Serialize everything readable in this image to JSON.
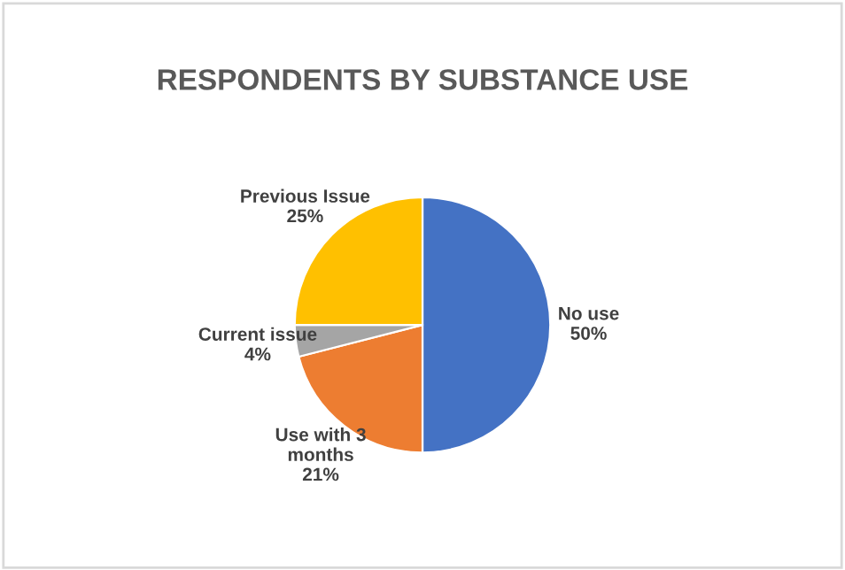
{
  "chart_data": {
    "type": "pie",
    "title": "RESPONDENTS BY SUBSTANCE USE",
    "categories": [
      "No use",
      "Use with 3\nmonths",
      "Current issue",
      "Previous Issue"
    ],
    "values": [
      50,
      21,
      4,
      25
    ],
    "value_labels": [
      "50%",
      "21%",
      "4%",
      "25%"
    ],
    "colors": [
      "#4472c4",
      "#ed7d31",
      "#a5a5a5",
      "#ffc000"
    ],
    "legend": false
  }
}
